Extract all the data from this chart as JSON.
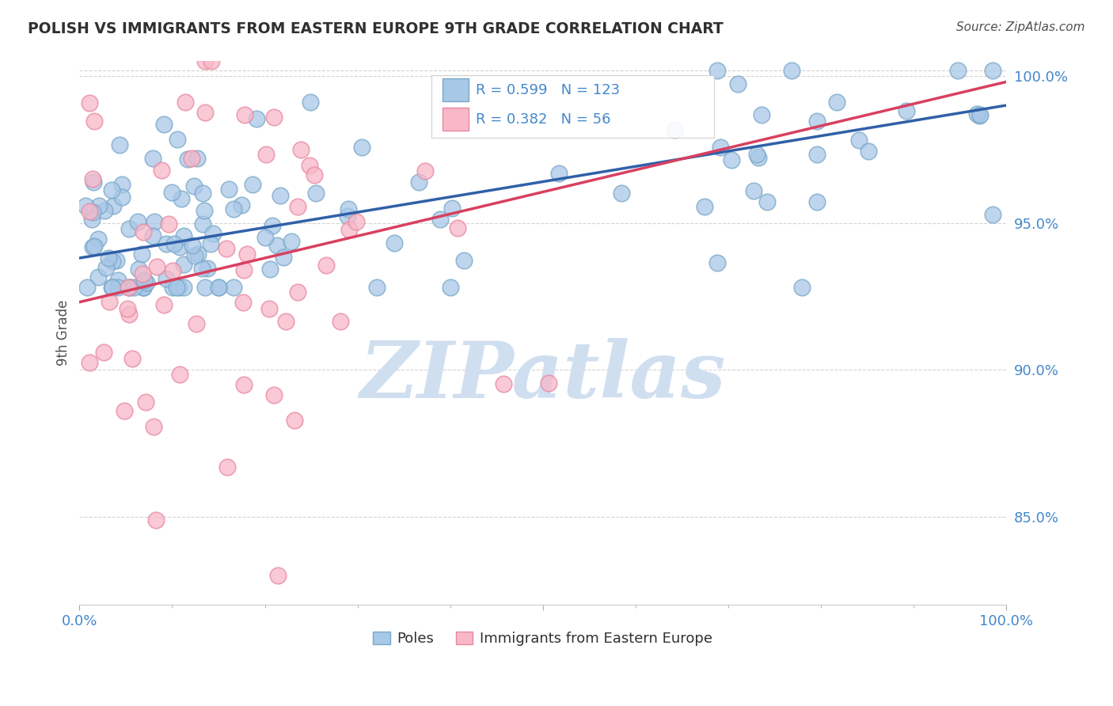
{
  "title": "POLISH VS IMMIGRANTS FROM EASTERN EUROPE 9TH GRADE CORRELATION CHART",
  "source_text": "Source: ZipAtlas.com",
  "ylabel": "9th Grade",
  "xlim": [
    0.0,
    1.0
  ],
  "ylim": [
    0.82,
    1.005
  ],
  "yticks": [
    0.85,
    0.9,
    0.95,
    1.0
  ],
  "ytick_labels": [
    "85.0%",
    "90.0%",
    "95.0%",
    "100.0%"
  ],
  "blue_R": 0.599,
  "blue_N": 123,
  "pink_R": 0.382,
  "pink_N": 56,
  "blue_color": "#a8c8e8",
  "blue_edge_color": "#7aa8c8",
  "pink_color": "#f8b8c8",
  "pink_edge_color": "#e888a0",
  "blue_line_color": "#3060a8",
  "pink_line_color": "#d84060",
  "title_color": "#303030",
  "axis_label_color": "#505050",
  "tick_label_color": "#4488cc",
  "watermark_color": "#d0dff0",
  "legend_label_blue": "Poles",
  "legend_label_pink": "Immigrants from Eastern Europe",
  "background_color": "#ffffff",
  "grid_color": "#c8c8c8",
  "blue_line_y0": 0.938,
  "blue_line_y1": 0.99,
  "pink_line_y0": 0.923,
  "pink_line_y1": 0.998
}
